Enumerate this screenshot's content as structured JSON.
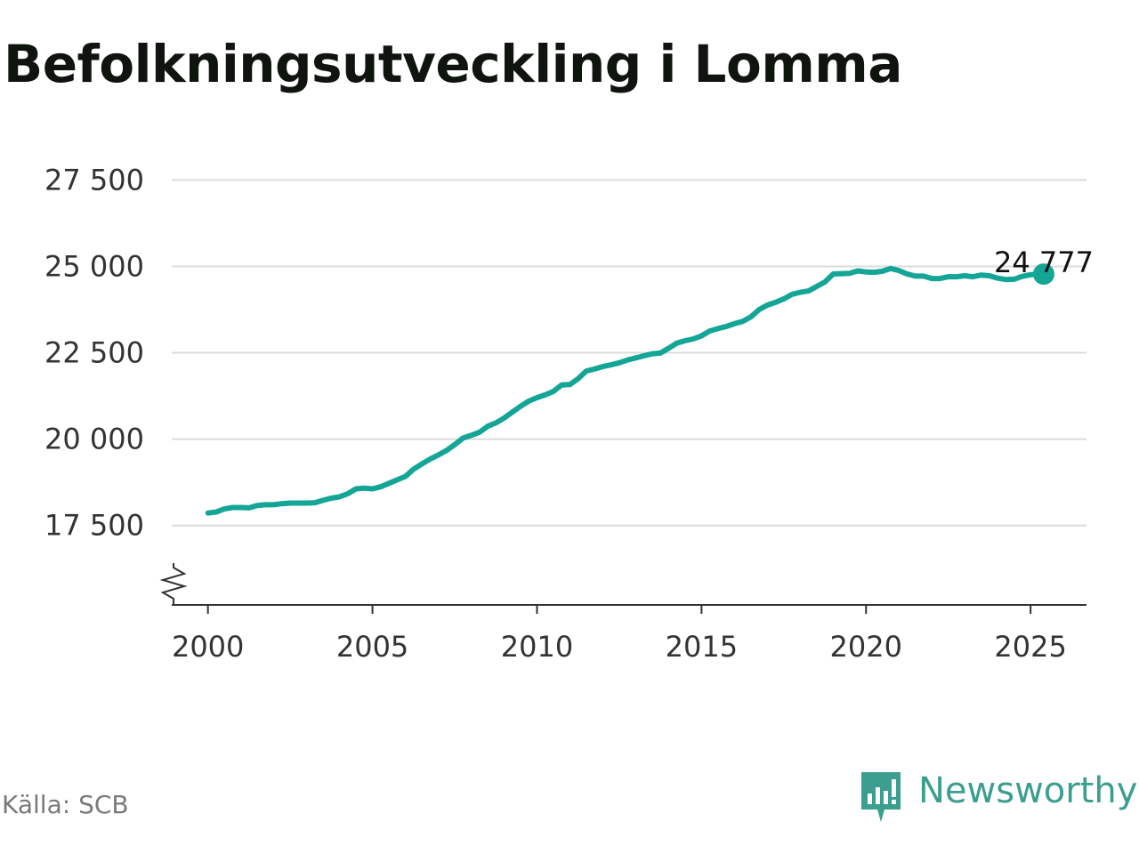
{
  "title": "Befolkningsutveckling i Lomma",
  "source": "Källa: SCB",
  "brand": {
    "name": "Newsworthy",
    "icon": "newsworthy-logo-icon",
    "color": "#3b9e8f"
  },
  "colors": {
    "line": "#13a596",
    "grid": "#dcdcdc",
    "axis": "#333333"
  },
  "chart_data": {
    "type": "line",
    "title": "Befolkningsutveckling i Lomma",
    "xlabel": "",
    "ylabel": "",
    "x_ticks": [
      "2000",
      "2005",
      "2010",
      "2015",
      "2020",
      "2025"
    ],
    "y_ticks": [
      "17 500",
      "20 000",
      "22 500",
      "25 000",
      "27 500"
    ],
    "ylim": [
      15200,
      28000
    ],
    "xlim": [
      1998.9,
      2026.7
    ],
    "axis_break": true,
    "grid": true,
    "last_value_label": "24 777",
    "series": [
      {
        "x": [
          2000.0,
          2000.25,
          2000.5,
          2000.75,
          2001.0,
          2001.25,
          2001.5,
          2001.75,
          2002.0,
          2002.25,
          2002.5,
          2002.75,
          2003.0,
          2003.25,
          2003.5,
          2003.75,
          2004.0,
          2004.25,
          2004.5,
          2004.75,
          2005.0,
          2005.25,
          2005.5,
          2005.75,
          2006.0,
          2006.25,
          2006.5,
          2006.75,
          2007.0,
          2007.25,
          2007.5,
          2007.75,
          2008.0,
          2008.25,
          2008.5,
          2008.75,
          2009.0,
          2009.25,
          2009.5,
          2009.75,
          2010.0,
          2010.25,
          2010.5,
          2010.75,
          2011.0,
          2011.25,
          2011.5,
          2011.75,
          2012.0,
          2012.25,
          2012.5,
          2012.75,
          2013.0,
          2013.25,
          2013.5,
          2013.75,
          2014.0,
          2014.25,
          2014.5,
          2014.75,
          2015.0,
          2015.25,
          2015.5,
          2015.75,
          2016.0,
          2016.25,
          2016.5,
          2016.75,
          2017.0,
          2017.25,
          2017.5,
          2017.75,
          2018.0,
          2018.25,
          2018.5,
          2018.75,
          2019.0,
          2019.25,
          2019.5,
          2019.75,
          2020.0,
          2020.25,
          2020.5,
          2020.75,
          2021.0,
          2021.25,
          2021.5,
          2021.75,
          2022.0,
          2022.25,
          2022.5,
          2022.75,
          2023.0,
          2023.25,
          2023.5,
          2023.75,
          2024.0,
          2024.25,
          2024.5,
          2024.75,
          2025.0,
          2025.25,
          2025.4
        ],
        "values": [
          17860,
          17890,
          17980,
          18020,
          18020,
          18010,
          18080,
          18100,
          18100,
          18130,
          18150,
          18150,
          18150,
          18160,
          18230,
          18290,
          18330,
          18420,
          18560,
          18580,
          18560,
          18620,
          18720,
          18820,
          18920,
          19130,
          19280,
          19420,
          19540,
          19670,
          19840,
          20030,
          20110,
          20200,
          20370,
          20470,
          20610,
          20780,
          20950,
          21100,
          21200,
          21280,
          21380,
          21570,
          21580,
          21750,
          21970,
          22030,
          22100,
          22150,
          22210,
          22290,
          22350,
          22410,
          22470,
          22490,
          22630,
          22780,
          22850,
          22900,
          22990,
          23130,
          23200,
          23260,
          23340,
          23410,
          23540,
          23750,
          23880,
          23960,
          24060,
          24190,
          24250,
          24290,
          24420,
          24550,
          24780,
          24790,
          24800,
          24870,
          24840,
          24830,
          24860,
          24940,
          24880,
          24780,
          24720,
          24720,
          24650,
          24650,
          24700,
          24700,
          24730,
          24700,
          24750,
          24730,
          24660,
          24620,
          24630,
          24710,
          24760,
          24770,
          24777
        ]
      }
    ]
  }
}
